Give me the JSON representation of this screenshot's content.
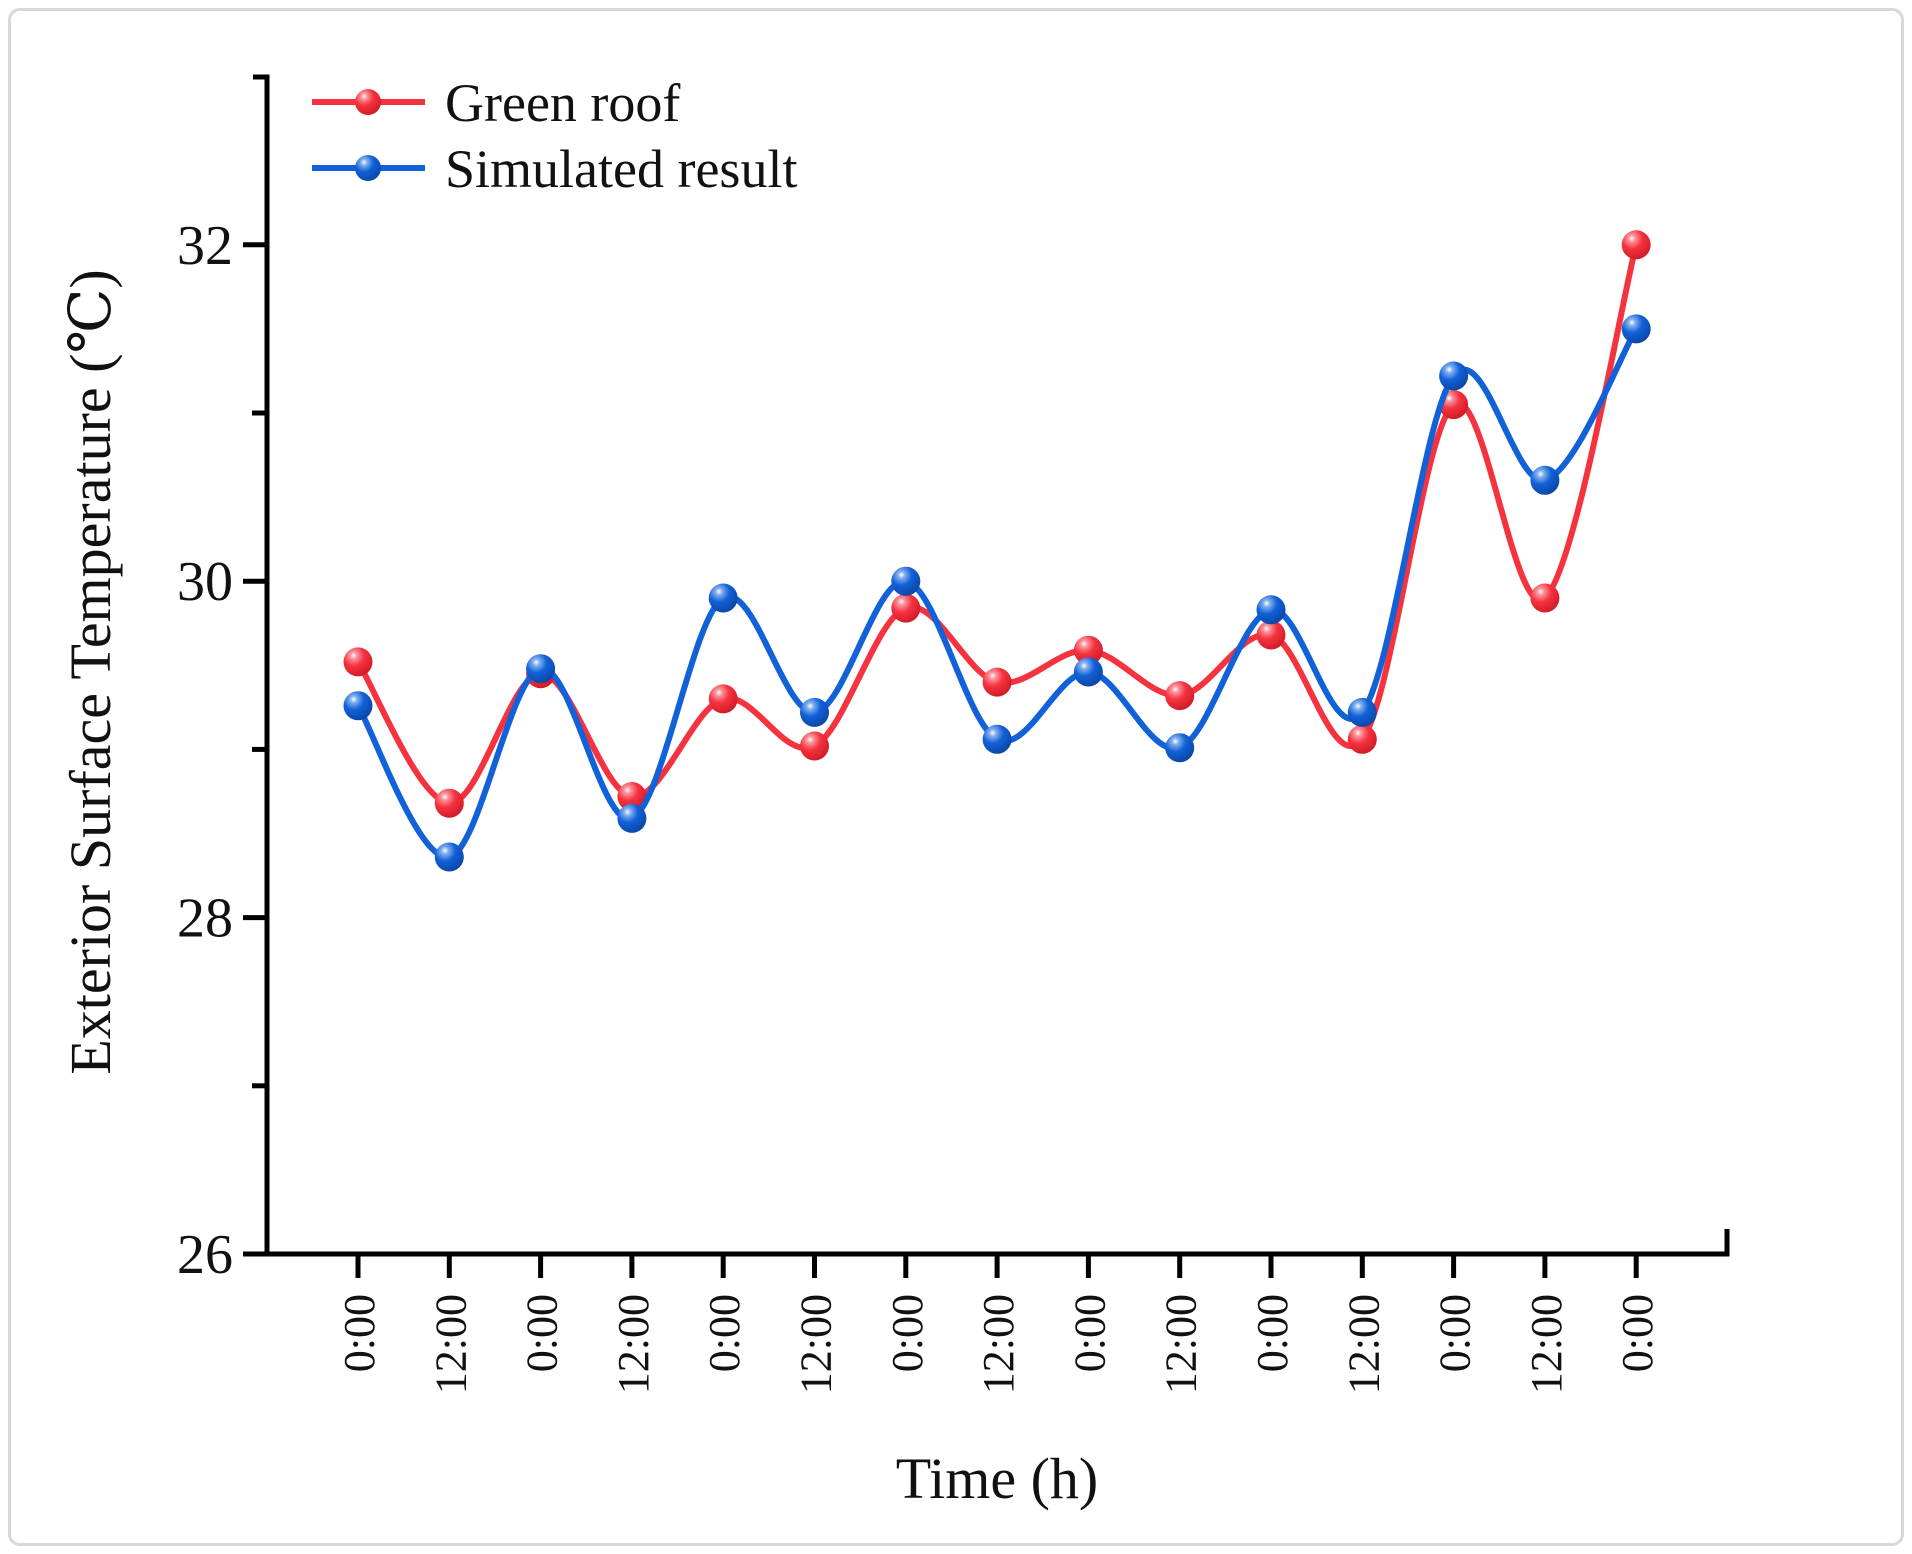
{
  "figure": {
    "background": "#ffffff",
    "border_color": "#d7d7d7",
    "axis_color": "#000000"
  },
  "chart_data": {
    "type": "line",
    "title": "",
    "xlabel": "Time (h)",
    "ylabel": "Exterior Surface Temperature (℃)",
    "categories": [
      "0:00",
      "12:00",
      "0:00",
      "12:00",
      "0:00",
      "12:00",
      "0:00",
      "12:00",
      "0:00",
      "12:00",
      "0:00",
      "12:00",
      "0:00",
      "12:00",
      "0:00"
    ],
    "series": [
      {
        "name": "Green roof",
        "color": "#F5333F",
        "marker": "sphere",
        "values": [
          29.52,
          28.68,
          29.45,
          28.72,
          29.3,
          29.02,
          29.84,
          29.4,
          29.59,
          29.32,
          29.68,
          29.06,
          31.05,
          29.9,
          32.0
        ]
      },
      {
        "name": "Simulated result",
        "color": "#1161D9",
        "marker": "sphere",
        "values": [
          29.26,
          28.36,
          29.48,
          28.59,
          29.9,
          29.22,
          30.0,
          29.06,
          29.46,
          29.01,
          29.83,
          29.22,
          31.22,
          30.6,
          31.5
        ]
      }
    ],
    "y_axis": {
      "min": 26,
      "max": 33,
      "major_ticks": [
        26,
        28,
        30,
        32
      ],
      "minor_ticks": [
        27,
        29,
        31
      ]
    },
    "x_tick_label_rotation": -90,
    "grid": false,
    "legend_position": "top-left",
    "curve": "smooth-spline"
  }
}
